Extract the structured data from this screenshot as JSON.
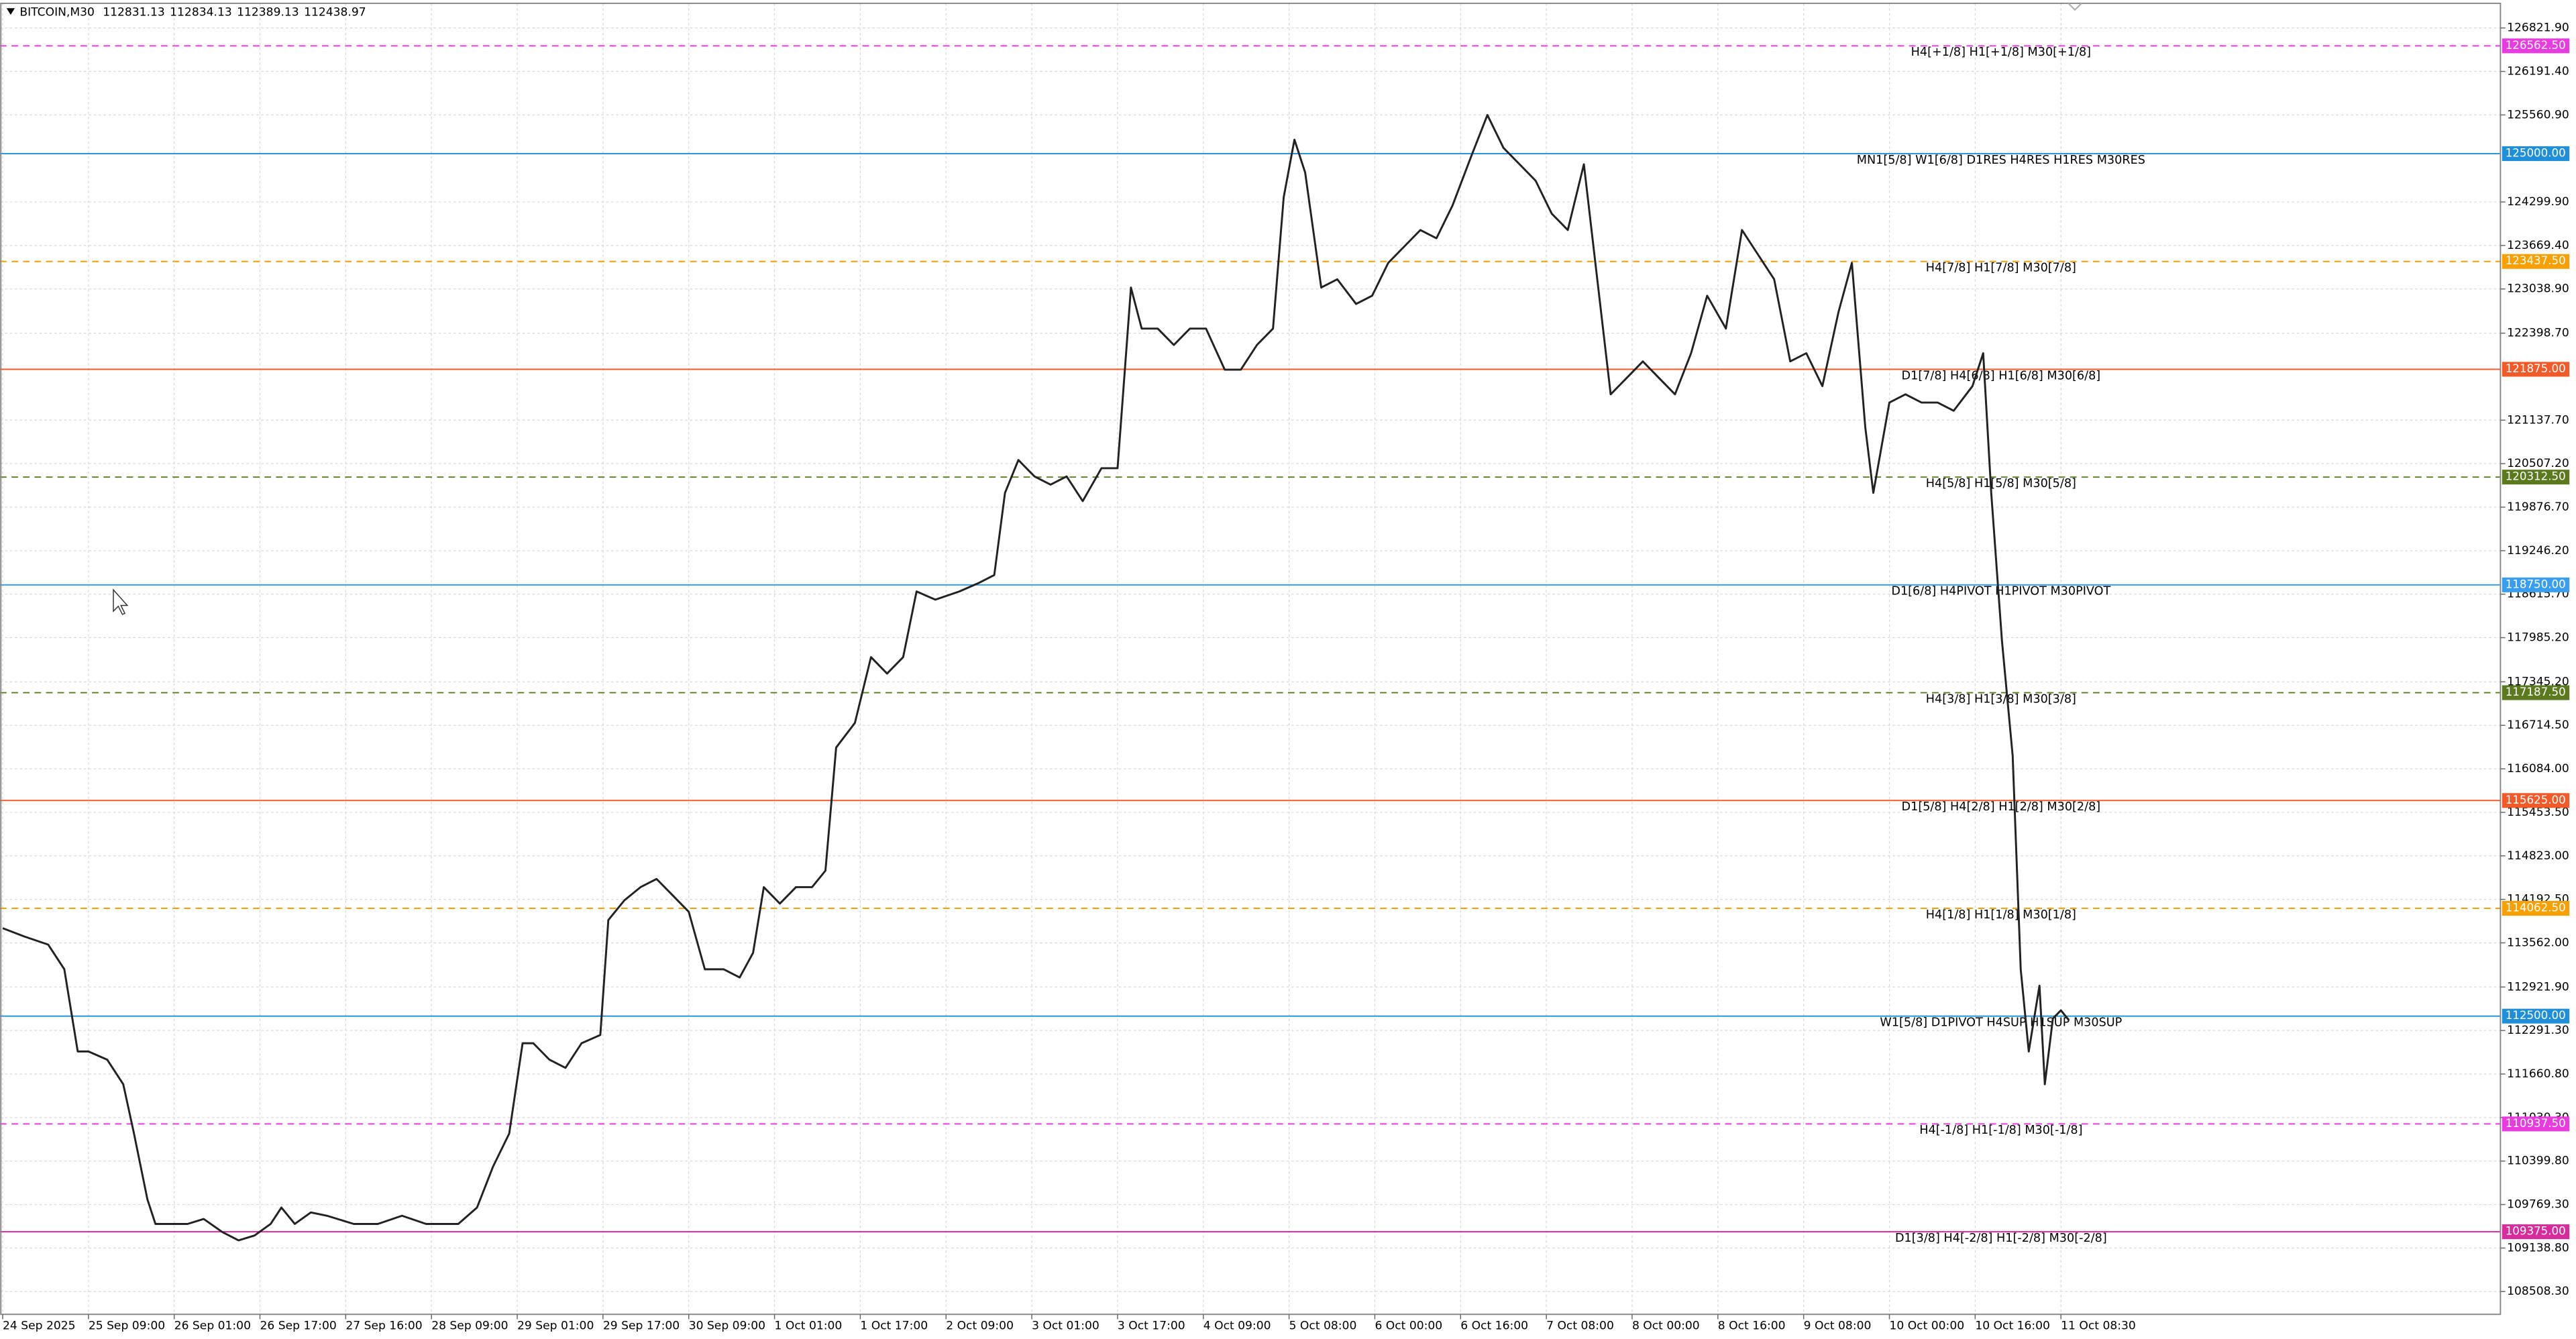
{
  "chart_data": {
    "type": "line",
    "title": "BITCOIN,M30",
    "quote": [
      112831.13,
      112834.13,
      112389.13,
      112438.97
    ],
    "grid": true,
    "xlim": [
      -1,
      932
    ],
    "ylim": [
      108178,
      127179
    ],
    "xticks": [
      {
        "value": 0,
        "label": "24 Sep 2025"
      },
      {
        "value": 32,
        "label": "25 Sep 09:00"
      },
      {
        "value": 64,
        "label": "26 Sep 01:00"
      },
      {
        "value": 96,
        "label": "26 Sep 17:00"
      },
      {
        "value": 128,
        "label": "27 Sep 16:00"
      },
      {
        "value": 160,
        "label": "28 Sep 09:00"
      },
      {
        "value": 192,
        "label": "29 Sep 01:00"
      },
      {
        "value": 224,
        "label": "29 Sep 17:00"
      },
      {
        "value": 256,
        "label": "30 Sep 09:00"
      },
      {
        "value": 288,
        "label": "1 Oct 01:00"
      },
      {
        "value": 320,
        "label": "1 Oct 17:00"
      },
      {
        "value": 352,
        "label": "2 Oct 09:00"
      },
      {
        "value": 384,
        "label": "3 Oct 01:00"
      },
      {
        "value": 416,
        "label": "3 Oct 17:00"
      },
      {
        "value": 448,
        "label": "4 Oct 09:00"
      },
      {
        "value": 480,
        "label": "5 Oct 08:00"
      },
      {
        "value": 512,
        "label": "6 Oct 00:00"
      },
      {
        "value": 544,
        "label": "6 Oct 16:00"
      },
      {
        "value": 576,
        "label": "7 Oct 08:00"
      },
      {
        "value": 608,
        "label": "8 Oct 00:00"
      },
      {
        "value": 640,
        "label": "8 Oct 16:00"
      },
      {
        "value": 672,
        "label": "9 Oct 08:00"
      },
      {
        "value": 704,
        "label": "10 Oct 00:00"
      },
      {
        "value": 736,
        "label": "10 Oct 16:00"
      },
      {
        "value": 768,
        "label": "11 Oct 08:30"
      }
    ],
    "yticks": [
      {
        "value": 126821.9,
        "label": "126821.90"
      },
      {
        "value": 126191.4,
        "label": "126191.40"
      },
      {
        "value": 125560.9,
        "label": "125560.90"
      },
      {
        "value": 124299.9,
        "label": "124299.90"
      },
      {
        "value": 123669.4,
        "label": "123669.40"
      },
      {
        "value": 123038.9,
        "label": "123038.90"
      },
      {
        "value": 122398.7,
        "label": "122398.70"
      },
      {
        "value": 121137.7,
        "label": "121137.70"
      },
      {
        "value": 120507.2,
        "label": "120507.20"
      },
      {
        "value": 119876.7,
        "label": "119876.70"
      },
      {
        "value": 119246.2,
        "label": "119246.20"
      },
      {
        "value": 118615.7,
        "label": "118615.70"
      },
      {
        "value": 117985.2,
        "label": "117985.20"
      },
      {
        "value": 117345.2,
        "label": "117345.20"
      },
      {
        "value": 116714.5,
        "label": "116714.50"
      },
      {
        "value": 116084,
        "label": "116084.00"
      },
      {
        "value": 115453.5,
        "label": "115453.50"
      },
      {
        "value": 114823,
        "label": "114823.00"
      },
      {
        "value": 114192.5,
        "label": "114192.50"
      },
      {
        "value": 113562,
        "label": "113562.00"
      },
      {
        "value": 112921.9,
        "label": "112921.90"
      },
      {
        "value": 112291.3,
        "label": "112291.30"
      },
      {
        "value": 111660.8,
        "label": "111660.80"
      },
      {
        "value": 111030.3,
        "label": "111030.30"
      },
      {
        "value": 110399.8,
        "label": "110399.80"
      },
      {
        "value": 109769.3,
        "label": "109769.30"
      },
      {
        "value": 109138.8,
        "label": "109138.80"
      },
      {
        "value": 108508.3,
        "label": "108508.30"
      }
    ],
    "levels": [
      {
        "value": 126562.5,
        "value_label": "126562.50",
        "label": "H4[+1/8] H1[+1/8] M30[+1/8]",
        "color": "#e83ce0",
        "style": "dashed"
      },
      {
        "value": 125000,
        "value_label": "125000.00",
        "label": "MN1[5/8] W1[6/8] D1RES H4RES H1RES M30RES",
        "color": "#1e8fd8",
        "style": "solid"
      },
      {
        "value": 123437.5,
        "value_label": "123437.50",
        "label": "H4[7/8] H1[7/8] M30[7/8]",
        "color": "#f7a000",
        "style": "dashed"
      },
      {
        "value": 121875,
        "value_label": "121875.00",
        "label": "D1[7/8] H4[6/8] H1[6/8] M30[6/8]",
        "color": "#f25a28",
        "style": "solid"
      },
      {
        "value": 120312.5,
        "value_label": "120312.50",
        "label": "H4[5/8] H1[5/8] M30[5/8]",
        "color": "#5b7a1e",
        "style": "dashed"
      },
      {
        "value": 118750,
        "value_label": "118750.00",
        "label": "D1[6/8] H4PIVOT H1PIVOT M30PIVOT",
        "color": "#3a9ef0",
        "style": "solid"
      },
      {
        "value": 117187.5,
        "value_label": "117187.50",
        "label": "H4[3/8] H1[3/8] M30[3/8]",
        "color": "#5b7a1e",
        "style": "dashed"
      },
      {
        "value": 115625,
        "value_label": "115625.00",
        "label": "D1[5/8] H4[2/8] H1[2/8] M30[2/8]",
        "color": "#f25a28",
        "style": "solid"
      },
      {
        "value": 114062.5,
        "value_label": "114062.50",
        "label": "H4[1/8] H1[1/8] M30[1/8]",
        "color": "#f7a000",
        "style": "dashed"
      },
      {
        "value": 112500,
        "value_label": "112500.00",
        "label": "W1[5/8] D1PIVOT H4SUP H1SUP M30SUP",
        "color": "#1e8fd8",
        "style": "solid"
      },
      {
        "value": 110937.5,
        "value_label": "110937.50",
        "label": "H4[-1/8] H1[-1/8] M30[-1/8]",
        "color": "#e83ce0",
        "style": "dashed"
      },
      {
        "value": 109375,
        "value_label": "109375.00",
        "label": "D1[3/8] H4[-2/8] H1[-2/8] M30[-2/8]",
        "color": "#d92c9c",
        "style": "solid"
      }
    ],
    "series": [
      {
        "color": "#222222",
        "x": [
          0,
          8,
          17,
          23,
          28,
          32,
          39,
          45,
          49,
          54,
          57,
          63,
          69,
          75,
          82,
          88,
          94,
          100,
          104,
          109,
          115,
          121,
          131,
          140,
          149,
          158,
          170,
          177,
          183,
          189,
          194,
          198,
          204,
          210,
          216,
          223,
          226,
          232,
          238,
          244,
          250,
          256,
          262,
          269,
          275,
          280,
          284,
          290,
          296,
          302,
          307,
          311,
          318,
          324,
          330,
          336,
          341,
          348,
          357,
          364,
          370,
          374,
          379,
          385,
          391,
          397,
          403,
          410,
          416,
          421,
          425,
          431,
          437,
          443,
          449,
          456,
          462,
          468,
          474,
          478,
          482,
          486,
          492,
          498,
          505,
          511,
          517,
          523,
          529,
          535,
          541,
          548,
          554,
          560,
          566,
          572,
          578,
          584,
          590,
          595,
          600,
          606,
          612,
          618,
          624,
          630,
          636,
          643,
          649,
          655,
          661,
          667,
          673,
          679,
          685,
          690,
          695,
          698,
          704,
          710,
          716,
          722,
          728,
          735,
          739,
          742,
          746,
          750,
          753,
          756,
          760,
          762,
          765,
          768,
          771
        ],
        "values": [
          113775,
          113655,
          113536,
          113179,
          111988,
          111988,
          111869,
          111512,
          110798,
          109845,
          109488,
          109488,
          109488,
          109560,
          109369,
          109250,
          109321,
          109488,
          109726,
          109488,
          109655,
          109607,
          109488,
          109488,
          109607,
          109488,
          109488,
          109726,
          110322,
          110798,
          112107,
          112107,
          111869,
          111750,
          112107,
          112227,
          113893,
          114179,
          114369,
          114488,
          114250,
          114012,
          113179,
          113179,
          113060,
          113417,
          114369,
          114131,
          114369,
          114369,
          114608,
          116393,
          116750,
          117703,
          117465,
          117703,
          118655,
          118536,
          118655,
          118774,
          118893,
          120084,
          120560,
          120322,
          120203,
          120322,
          119964,
          120441,
          120441,
          123060,
          122465,
          122465,
          122227,
          122465,
          122465,
          121869,
          121869,
          122227,
          122465,
          124369,
          125203,
          124727,
          123060,
          123179,
          122822,
          122941,
          123417,
          123655,
          123893,
          123774,
          124250,
          124965,
          125560,
          125084,
          124846,
          124608,
          124131,
          123893,
          124846,
          123179,
          121512,
          121750,
          121989,
          121750,
          121512,
          122108,
          122941,
          122465,
          123893,
          123536,
          123179,
          121989,
          122108,
          121631,
          122703,
          123417,
          121036,
          120084,
          121393,
          121512,
          121393,
          121393,
          121274,
          121631,
          122108,
          120084,
          117941,
          116274,
          113179,
          111988,
          112941,
          111512,
          112465,
          112584,
          112439
        ]
      }
    ]
  }
}
